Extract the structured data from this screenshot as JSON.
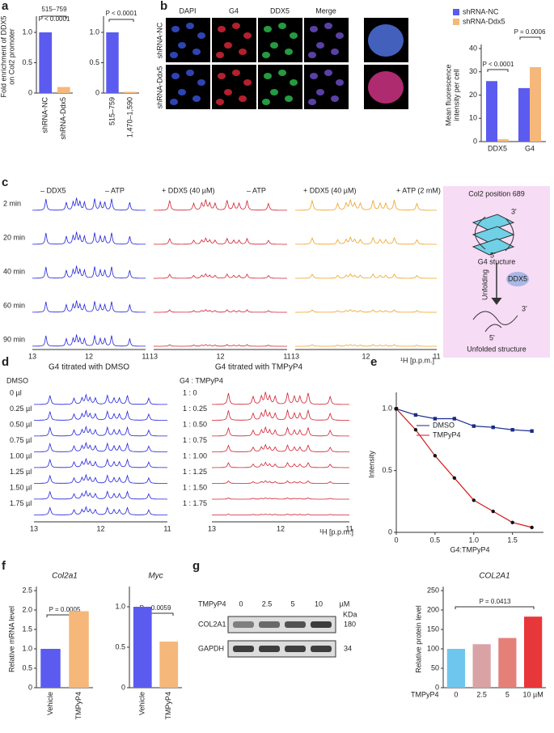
{
  "panel_labels": [
    "a",
    "b",
    "c",
    "d",
    "e",
    "f",
    "g"
  ],
  "b": {
    "channels": [
      "DAPI",
      "G4",
      "DDX5",
      "Merge"
    ],
    "rows": [
      "shRNA-NC",
      "shRNA-Ddx5"
    ]
  },
  "c": {
    "headers": [
      [
        "– DDX5",
        "– ATP"
      ],
      [
        "+ DDX5 (40 µM)",
        "– ATP"
      ],
      [
        "+ DDX5 (40 µM)",
        "+ ATP (2 mM)"
      ]
    ],
    "times": [
      "2 min",
      "20 min",
      "40 min",
      "60 min",
      "90 min"
    ],
    "axis": [
      "13",
      "12",
      "11"
    ],
    "axis_label": "¹H [p.p.m.]",
    "diagram": {
      "title": "Col2 position 689",
      "g4": "G4 stucture",
      "step": "Unfolding",
      "enzyme": "DDX5",
      "unfolded": "Unfolded structure",
      "three": "3'",
      "five": "5'"
    }
  },
  "d": {
    "headers": [
      "G4 titrated with DMSO",
      "G4 titrated with TMPyP4"
    ],
    "left_title": "DMSO",
    "right_title": "G4 : TMPyP4",
    "dmso": [
      "0 µl",
      "0.25 µl",
      "0.50 µl",
      "0.75 µl",
      "1.00 µl",
      "1.25 µl",
      "1.50 µl",
      "1.75 µl"
    ],
    "ratio": [
      "1 : 0",
      "1 : 0.25",
      "1 : 0.50",
      "1 : 0.75",
      "1 : 1.00",
      "1 : 1.25",
      "1 : 1.50",
      "1 : 1.75"
    ]
  },
  "g_blot": {
    "label": "TMPyP4",
    "doses": [
      "0",
      "2.5",
      "5",
      "10",
      "µM"
    ],
    "kda": "KDa",
    "proteins": [
      "COL2A1",
      "GAPDH"
    ],
    "sizes": [
      "180",
      "34"
    ]
  },
  "chart_data": [
    {
      "type": "bar",
      "ylabel": [
        "Fold enrichment of DDX5",
        "on Col2 promoter"
      ],
      "categories": [
        "shRNA-NC",
        "shRNA-Ddx5"
      ],
      "values": [
        1.0,
        0.1
      ],
      "colors": [
        "#5b5bf0",
        "#f5b87a"
      ],
      "ylim": [
        0,
        1.2
      ],
      "yticks": [
        0,
        {
          "value": 0.5,
          "label": "0.5"
        },
        {
          "value": 1,
          "label": "1.0"
        }
      ],
      "annotations": [
        "515–759",
        "P < 0.0001"
      ]
    },
    {
      "type": "bar",
      "categories": [
        "515–759",
        "1,470–1,590"
      ],
      "values": [
        1.0,
        0.02
      ],
      "colors": [
        "#5b5bf0",
        "#f5b87a"
      ],
      "ylim": [
        0,
        1.2
      ],
      "yticks": [
        0,
        {
          "value": 0.5,
          "label": "0.5"
        },
        {
          "value": 1,
          "label": "1.0"
        }
      ],
      "annotations": [
        "P < 0.0001"
      ]
    },
    {
      "type": "bar",
      "ylabel": [
        "Mean fluorescence",
        "intensity per cell"
      ],
      "categories": [
        "DDX5",
        "G4"
      ],
      "series": [
        {
          "name": "shRNA-NC",
          "color": "#5b5bf0",
          "values": [
            26,
            23
          ]
        },
        {
          "name": "shRNA-Ddx5",
          "color": "#f5b87a",
          "values": [
            1,
            32
          ]
        }
      ],
      "ylim": [
        0,
        40
      ],
      "yticks": [
        0,
        10,
        20,
        30,
        40
      ],
      "annotations": [
        "P < 0.0001",
        "P = 0.0006"
      ]
    },
    {
      "type": "line",
      "xlabel": "G4:TMPyP4",
      "ylabel": [
        "Intensity"
      ],
      "x": [
        0,
        0.25,
        0.5,
        0.75,
        1.0,
        1.25,
        1.5,
        1.75
      ],
      "series": [
        {
          "name": "DMSO",
          "color": "#1a2a8c",
          "values": [
            1.0,
            0.95,
            0.92,
            0.92,
            0.86,
            0.85,
            0.83,
            0.82
          ]
        },
        {
          "name": "TMPyP4",
          "color": "#d11a1a",
          "values": [
            1.0,
            0.83,
            0.62,
            0.44,
            0.26,
            0.17,
            0.08,
            0.04
          ]
        }
      ],
      "xlim": [
        0,
        1.9
      ],
      "xticks": [
        0,
        {
          "value": 0.5,
          "label": "0.5"
        },
        {
          "value": 1,
          "label": "1.0"
        },
        {
          "value": 1.5,
          "label": "1.5"
        }
      ],
      "ylim": [
        0,
        1.1
      ],
      "yticks": [
        0,
        {
          "value": 0.5,
          "label": "0.5"
        },
        {
          "value": 1,
          "label": "1.0"
        }
      ]
    },
    {
      "type": "bar",
      "title": "Col2a1",
      "ylabel": [
        "Relative mRNA level"
      ],
      "categories": [
        "Vehicle",
        "TMPyP4"
      ],
      "values": [
        1.0,
        1.97
      ],
      "colors": [
        "#5b5bf0",
        "#f5b87a"
      ],
      "ylim": [
        0,
        2.5
      ],
      "yticks": [
        0,
        {
          "value": 0.5,
          "label": "0.5"
        },
        {
          "value": 1,
          "label": "1.0"
        },
        {
          "value": 1.5,
          "label": "1.5"
        },
        {
          "value": 2,
          "label": "2.0"
        },
        {
          "value": 2.5,
          "label": "2.5"
        }
      ],
      "annotations": [
        "P = 0.0005"
      ]
    },
    {
      "type": "bar",
      "title": "Myc",
      "categories": [
        "Vehicle",
        "TMPyP4"
      ],
      "values": [
        1.0,
        0.57
      ],
      "colors": [
        "#5b5bf0",
        "#f5b87a"
      ],
      "ylim": [
        0,
        1.2
      ],
      "yticks": [
        0,
        {
          "value": 0.5,
          "label": "0.5"
        },
        {
          "value": 1,
          "label": "1.0"
        }
      ],
      "annotations": [
        "P = 0.0059"
      ]
    },
    {
      "type": "bar",
      "title": "COL2A1",
      "ylabel": [
        "Relative protein level"
      ],
      "xlabel": "TMPyP4",
      "categories": [
        "0",
        "2.5",
        "5",
        "10 µM"
      ],
      "values": [
        100,
        112,
        128,
        183
      ],
      "colors": [
        "#6ec6ee",
        "#d9a3a6",
        "#e58079",
        "#e8373a"
      ],
      "ylim": [
        0,
        250
      ],
      "yticks": [
        0,
        50,
        100,
        150,
        200,
        250
      ],
      "annotations": [
        "P = 0.0413"
      ]
    }
  ]
}
